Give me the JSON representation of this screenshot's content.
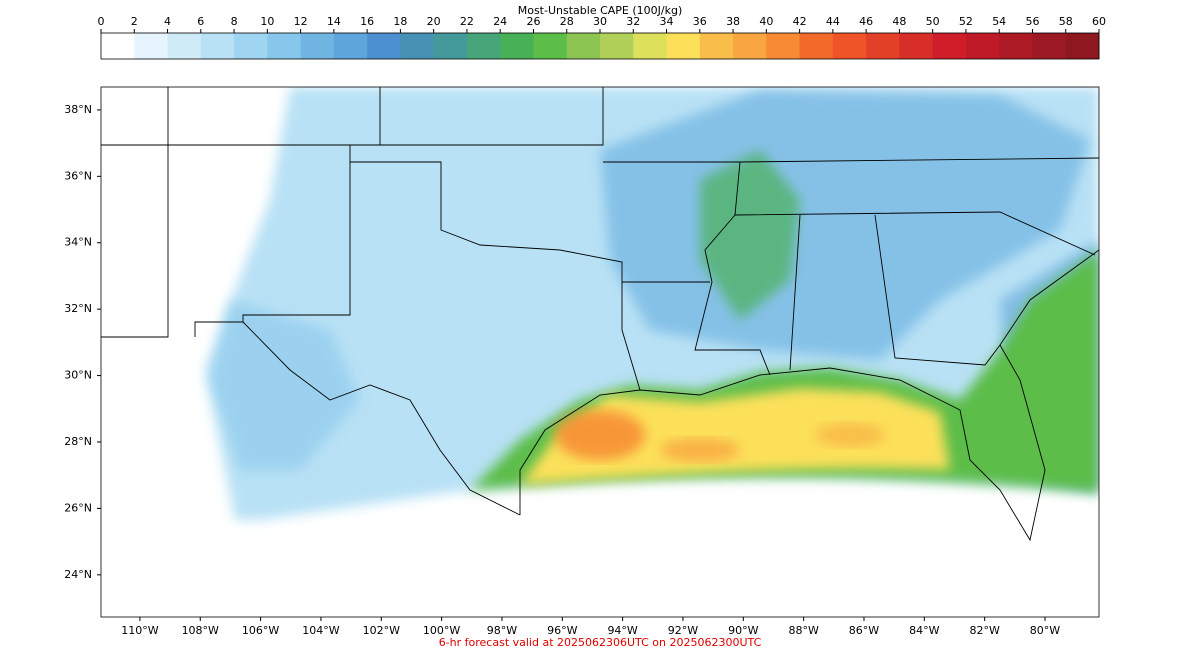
{
  "colorbar": {
    "title": "Most-Unstable CAPE (100J/kg)",
    "lim": [
      0,
      60
    ],
    "ticks": [
      0,
      2,
      4,
      6,
      8,
      10,
      12,
      14,
      16,
      18,
      20,
      22,
      24,
      26,
      28,
      30,
      32,
      34,
      36,
      38,
      40,
      42,
      44,
      46,
      48,
      50,
      52,
      54,
      56,
      58,
      60
    ],
    "colors": [
      "#ffffff",
      "#e6f5fd",
      "#d0ebf8",
      "#b8e1f5",
      "#a0d5f2",
      "#88c7ec",
      "#70b4e2",
      "#5ea5dc",
      "#4c90cf",
      "#4891b5",
      "#449a9a",
      "#46a67a",
      "#48b056",
      "#5cbd48",
      "#8cc552",
      "#b1d05a",
      "#dde05a",
      "#fce05a",
      "#f9be4a",
      "#f8a640",
      "#f78a32",
      "#f26a2a",
      "#ee5428",
      "#e34028",
      "#d82e28",
      "#cf1e2a",
      "#be1a28",
      "#ac1a26",
      "#9c1a24",
      "#8e1820"
    ]
  },
  "map": {
    "lat_lim": [
      22.73,
      38.69
    ],
    "lon_lim": [
      -111.29,
      -78.21
    ],
    "lat_ticks": [
      {
        "value": 38,
        "label": "38°N"
      },
      {
        "value": 36,
        "label": "36°N"
      },
      {
        "value": 34,
        "label": "34°N"
      },
      {
        "value": 32,
        "label": "32°N"
      },
      {
        "value": 30,
        "label": "30°N"
      },
      {
        "value": 28,
        "label": "28°N"
      },
      {
        "value": 26,
        "label": "26°N"
      },
      {
        "value": 24,
        "label": "24°N"
      }
    ],
    "lon_ticks": [
      {
        "value": -110,
        "label": "110°W"
      },
      {
        "value": -108,
        "label": "108°W"
      },
      {
        "value": -106,
        "label": "106°W"
      },
      {
        "value": -104,
        "label": "104°W"
      },
      {
        "value": -102,
        "label": "102°W"
      },
      {
        "value": -100,
        "label": "100°W"
      },
      {
        "value": -98,
        "label": "98°W"
      },
      {
        "value": -96,
        "label": "96°W"
      },
      {
        "value": -94,
        "label": "94°W"
      },
      {
        "value": -92,
        "label": "92°W"
      },
      {
        "value": -90,
        "label": "90°W"
      },
      {
        "value": -88,
        "label": "88°W"
      },
      {
        "value": -86,
        "label": "86°W"
      },
      {
        "value": -84,
        "label": "84°W"
      },
      {
        "value": -82,
        "label": "82°W"
      },
      {
        "value": -80,
        "label": "80°W"
      }
    ]
  },
  "footer": "6-hr forecast valid at 2025062306UTC on 2025062300UTC"
}
